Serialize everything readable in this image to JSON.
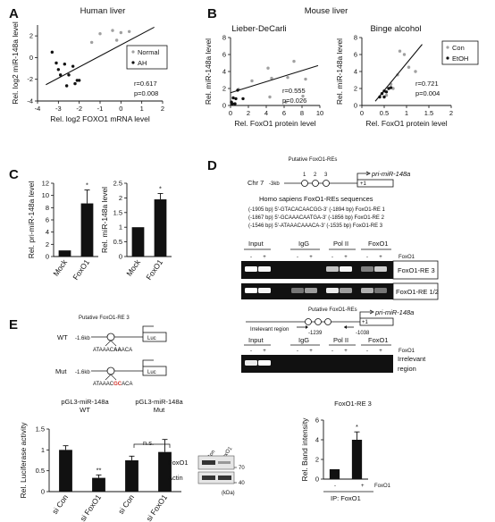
{
  "panels": {
    "A": {
      "letter": "A",
      "title": "Human liver",
      "legend": [
        "Normal",
        "AH"
      ],
      "stats": [
        "r=0.617",
        "p=0.008"
      ]
    },
    "B": {
      "letter": "B",
      "title": "Mouse liver",
      "subtitle_left": "Lieber-DeCarli",
      "subtitle_right": "Binge alcohol",
      "legend": [
        "Con",
        "EtOH"
      ],
      "stats_left": [
        "r=0.555",
        "p=0.026"
      ],
      "stats_right": [
        "r=0.721",
        "p=0.004"
      ]
    },
    "C": {
      "letter": "C",
      "star": "*"
    },
    "D": {
      "letter": "D",
      "chr": "Chr 7",
      "putative": "Putative FoxO1-REs",
      "kb": "-3kb",
      "plus1": "+1",
      "mirna": "pri-miR-148a",
      "seq_title": "Homo sapiens FoxO1-REs sequences",
      "seq_lines": [
        "(-1905 bp) 5'-GTACACAACGG-3' (-1894 bp) FoxO1-RE 1",
        "(-1867 bp) 5'-GCAAACAATGA-3' (-1856 bp) FoxO1-RE 2",
        "(-1546 bp) 5'-ATAAACAAACA-3' (-1535 bp) FoxO1-RE 3"
      ],
      "gel_headers": [
        "Input",
        "IgG",
        "Pol II",
        "FoxO1"
      ],
      "signs": [
        "-",
        "+",
        "-",
        "+",
        "-",
        "+",
        "-",
        "+"
      ],
      "foxo1_label": "FoxO1",
      "gel_rows": [
        "FoxO1-RE 3",
        "FoxO1-RE 1/2"
      ],
      "irrelevant_region": "Irrelevant region",
      "irrelevant_coords": [
        "-1239",
        "-1038"
      ],
      "irrelevant_label_1": "Irrelevant",
      "irrelevant_label_2": "region",
      "plus1_b": "+1",
      "mirna_b": "pri-miR-148a",
      "putative_b": "Putative FoxO1-REs"
    },
    "E": {
      "letter": "E",
      "re3": "Putative FoxO1-RE 3",
      "wt": "WT",
      "mut": "Mut",
      "kb_wt": "-1.6kb",
      "kb_mut": "-1.6kb",
      "luc": "Luc",
      "seq_wt_a": "ATAAAC",
      "seq_wt_b": "AA",
      "seq_wt_c": "ACA",
      "seq_mut_a": "ATAAAC",
      "seq_mut_b": "GC",
      "seq_mut_c": "ACA",
      "construct_wt": [
        "pGL3-miR-148a",
        "WT"
      ],
      "construct_mut": [
        "pGL3-miR-148a",
        "Mut"
      ],
      "ns": "n.s.",
      "stars": "**",
      "ylabel": "Rel. Luciferase activity",
      "wb_cols": [
        "si Con",
        "si FoxO1"
      ],
      "wb_rows": [
        "FoxO1",
        "Actin"
      ],
      "wb_kda": [
        "70",
        "40"
      ],
      "kda": "(kDa)",
      "band_title": "FoxO1-RE 3",
      "band_ylabel": "Rel. Band intensity",
      "band_signs": [
        "-",
        "+"
      ],
      "band_foxo1": "FoxO1",
      "band_ip": "IP: FoxO1",
      "band_star": "*"
    }
  },
  "chart_data": [
    {
      "id": "A",
      "type": "scatter",
      "xlabel": "Rel. log2 FOXO1 mRNA level",
      "ylabel": "Rel. log2 miR-148a level",
      "xlim": [
        -4,
        2
      ],
      "ylim": [
        -4,
        3
      ],
      "xticks": [
        -4,
        -3,
        -2,
        -1,
        0,
        1,
        2
      ],
      "yticks": [
        -4,
        -2,
        0,
        2
      ],
      "series": [
        {
          "name": "Normal",
          "color": "#a0a0a0",
          "points": [
            [
              -1.0,
              2.2
            ],
            [
              -0.4,
              2.5
            ],
            [
              0.0,
              2.3
            ],
            [
              -0.2,
              1.6
            ],
            [
              0.4,
              2.4
            ],
            [
              -1.4,
              1.4
            ]
          ]
        },
        {
          "name": "AH",
          "color": "#111111",
          "points": [
            [
              -3.3,
              0.5
            ],
            [
              -3.1,
              -0.5
            ],
            [
              -2.7,
              -0.6
            ],
            [
              -2.3,
              -0.8
            ],
            [
              -2.9,
              -1.6
            ],
            [
              -2.5,
              -1.6
            ],
            [
              -2.1,
              -2.1
            ],
            [
              -3.0,
              -1.1
            ],
            [
              -2.2,
              -2.4
            ],
            [
              -2.6,
              -2.6
            ],
            [
              -2.0,
              -2.1
            ]
          ]
        }
      ],
      "fit": [
        [
          -3.6,
          -2.5
        ],
        [
          1.6,
          2.8
        ]
      ]
    },
    {
      "id": "B1",
      "type": "scatter",
      "xlabel": "Rel. FoxO1 protein level",
      "ylabel": "Rel. miR-148a level",
      "xlim": [
        0,
        10
      ],
      "ylim": [
        0,
        8
      ],
      "xticks": [
        0,
        2,
        4,
        6,
        8,
        10
      ],
      "yticks": [
        0,
        2,
        4,
        6,
        8
      ],
      "series": [
        {
          "name": "Con",
          "color": "#a0a0a0",
          "points": [
            [
              0.9,
              1.9
            ],
            [
              2.4,
              2.9
            ],
            [
              4.6,
              3.2
            ],
            [
              4.2,
              4.4
            ],
            [
              4.4,
              1.0
            ],
            [
              6.4,
              3.3
            ],
            [
              7.1,
              5.2
            ],
            [
              8.1,
              1.1
            ],
            [
              8.4,
              3.1
            ],
            [
              6.2,
              0.4
            ]
          ]
        },
        {
          "name": "EtOH",
          "color": "#111111",
          "points": [
            [
              0.1,
              0.4
            ],
            [
              0.3,
              0.9
            ],
            [
              0.6,
              0.8
            ],
            [
              0.2,
              0.2
            ],
            [
              0.8,
              1.8
            ],
            [
              1.4,
              0.8
            ],
            [
              0.5,
              0.2
            ]
          ]
        }
      ],
      "fit": [
        [
          0,
          1.5
        ],
        [
          9.8,
          4.7
        ]
      ]
    },
    {
      "id": "B2",
      "type": "scatter",
      "xlabel": "Rel. FoxO1 protein level",
      "ylabel": "Rel. miR-148a level",
      "xlim": [
        0,
        2
      ],
      "ylim": [
        0,
        8
      ],
      "xticks": [
        0,
        0.5,
        1.0,
        1.5,
        2.0
      ],
      "yticks": [
        0,
        2,
        4,
        6,
        8
      ],
      "series": [
        {
          "name": "Con",
          "color": "#a0a0a0",
          "points": [
            [
              0.85,
              6.4
            ],
            [
              0.95,
              6.0
            ],
            [
              1.05,
              4.5
            ],
            [
              0.8,
              3.6
            ],
            [
              0.65,
              2.5
            ],
            [
              0.7,
              2.0
            ],
            [
              1.2,
              4.0
            ],
            [
              0.55,
              1.2
            ]
          ]
        },
        {
          "name": "EtOH",
          "color": "#111111",
          "points": [
            [
              0.4,
              1.0
            ],
            [
              0.45,
              1.4
            ],
            [
              0.5,
              1.0
            ],
            [
              0.55,
              1.6
            ],
            [
              0.6,
              2.0
            ],
            [
              0.65,
              2.1
            ],
            [
              0.5,
              1.7
            ]
          ]
        }
      ],
      "fit": [
        [
          0.3,
          0.5
        ],
        [
          1.35,
          7.2
        ]
      ]
    },
    {
      "id": "C1",
      "type": "bar",
      "categories": [
        "Mock",
        "FoxO1"
      ],
      "values": [
        1.0,
        8.7
      ],
      "errors": [
        0,
        2.2
      ],
      "ylabel": "Rel. pri-miR-148a level",
      "ylim": [
        0,
        12
      ],
      "yticks": [
        0,
        2,
        4,
        6,
        8,
        10,
        12
      ]
    },
    {
      "id": "C2",
      "type": "bar",
      "categories": [
        "Mock",
        "FoxO1"
      ],
      "values": [
        1.0,
        1.95
      ],
      "errors": [
        0,
        0.2
      ],
      "ylabel": "Rel. miR-148a level",
      "ylim": [
        0,
        2.5
      ],
      "yticks": [
        0,
        0.5,
        1.0,
        1.5,
        2.0,
        2.5
      ]
    },
    {
      "id": "E1",
      "type": "bar",
      "categories": [
        "si Con",
        "si FoxO1",
        "si Con",
        "si FoxO1"
      ],
      "values": [
        1.0,
        0.33,
        0.75,
        0.95
      ],
      "errors": [
        0.1,
        0.07,
        0.1,
        0.3
      ],
      "colors": [
        "#111111",
        "#111111",
        "#111111",
        "#111111"
      ],
      "ylabel": "Rel. Luciferase activity",
      "ylim": [
        0,
        1.5
      ],
      "yticks": [
        0,
        0.5,
        1.0,
        1.5
      ]
    },
    {
      "id": "E2",
      "type": "bar",
      "categories": [
        "-",
        "+"
      ],
      "values": [
        1.0,
        4.0
      ],
      "errors": [
        0,
        0.8
      ],
      "ylabel": "Rel. Band intensity",
      "ylim": [
        0,
        6
      ],
      "yticks": [
        0,
        2,
        4,
        6
      ]
    }
  ]
}
